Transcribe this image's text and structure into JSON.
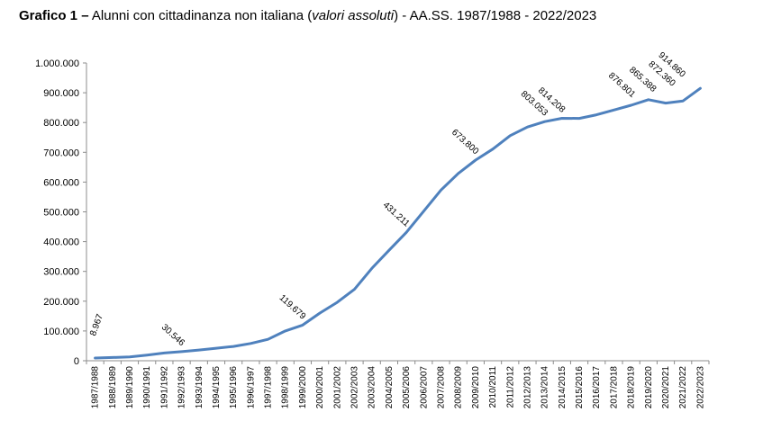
{
  "header": {
    "label": "Grafico 1 –",
    "text_before": "Alunni con cittadinanza non italiana (",
    "text_italic": "valori assoluti",
    "text_after": ") - AA.SS. 1987/1988 - 2022/2023"
  },
  "chart_data": {
    "type": "line",
    "title": "Grafico 1 – Alunni con cittadinanza non italiana (valori assoluti) - AA.SS. 1987/1988 - 2022/2023",
    "xlabel": "",
    "ylabel": "",
    "ylim": [
      0,
      1000000
    ],
    "y_ticks": [
      0,
      100000,
      200000,
      300000,
      400000,
      500000,
      600000,
      700000,
      800000,
      900000,
      1000000
    ],
    "y_tick_labels": [
      "0",
      "100.000",
      "200.000",
      "300.000",
      "400.000",
      "500.000",
      "600.000",
      "700.000",
      "800.000",
      "900.000",
      "1.000.000"
    ],
    "grid": false,
    "legend": "none",
    "line_color": "#4f81bd",
    "categories": [
      "1987/1988",
      "1988/1989",
      "1989/1990",
      "1990/1991",
      "1991/1992",
      "1992/1993",
      "1993/1994",
      "1994/1995",
      "1995/1996",
      "1996/1997",
      "1997/1998",
      "1998/1999",
      "1999/2000",
      "2000/2001",
      "2001/2002",
      "2002/2003",
      "2003/2004",
      "2004/2005",
      "2005/2006",
      "2006/2007",
      "2007/2008",
      "2008/2009",
      "2009/2010",
      "2010/2011",
      "2011/2012",
      "2012/2013",
      "2013/2014",
      "2014/2015",
      "2015/2016",
      "2016/2017",
      "2017/2018",
      "2018/2019",
      "2019/2020",
      "2020/2021",
      "2021/2022",
      "2022/2023"
    ],
    "series": [
      {
        "values": [
          8967,
          11000,
          13000,
          19000,
          26000,
          30546,
          36000,
          42000,
          48000,
          58000,
          72000,
          100000,
          119679,
          160000,
          196000,
          240000,
          310000,
          371000,
          431211,
          502000,
          573000,
          629000,
          673800,
          711000,
          756000,
          785000,
          803053,
          814208,
          814000,
          826000,
          842000,
          858000,
          876801,
          865388,
          872360,
          914860
        ]
      }
    ],
    "data_labels": [
      {
        "index": 0,
        "text": "8.967"
      },
      {
        "index": 5,
        "text": "30.546"
      },
      {
        "index": 12,
        "text": "119.679"
      },
      {
        "index": 18,
        "text": "431.211"
      },
      {
        "index": 22,
        "text": "673.800"
      },
      {
        "index": 26,
        "text": "803.053"
      },
      {
        "index": 27,
        "text": "814.208"
      },
      {
        "index": 32,
        "text": "876.801"
      },
      {
        "index": 33,
        "text": "865.388"
      },
      {
        "index": 34,
        "text": "872.360"
      },
      {
        "index": 35,
        "text": "914.860"
      }
    ]
  }
}
